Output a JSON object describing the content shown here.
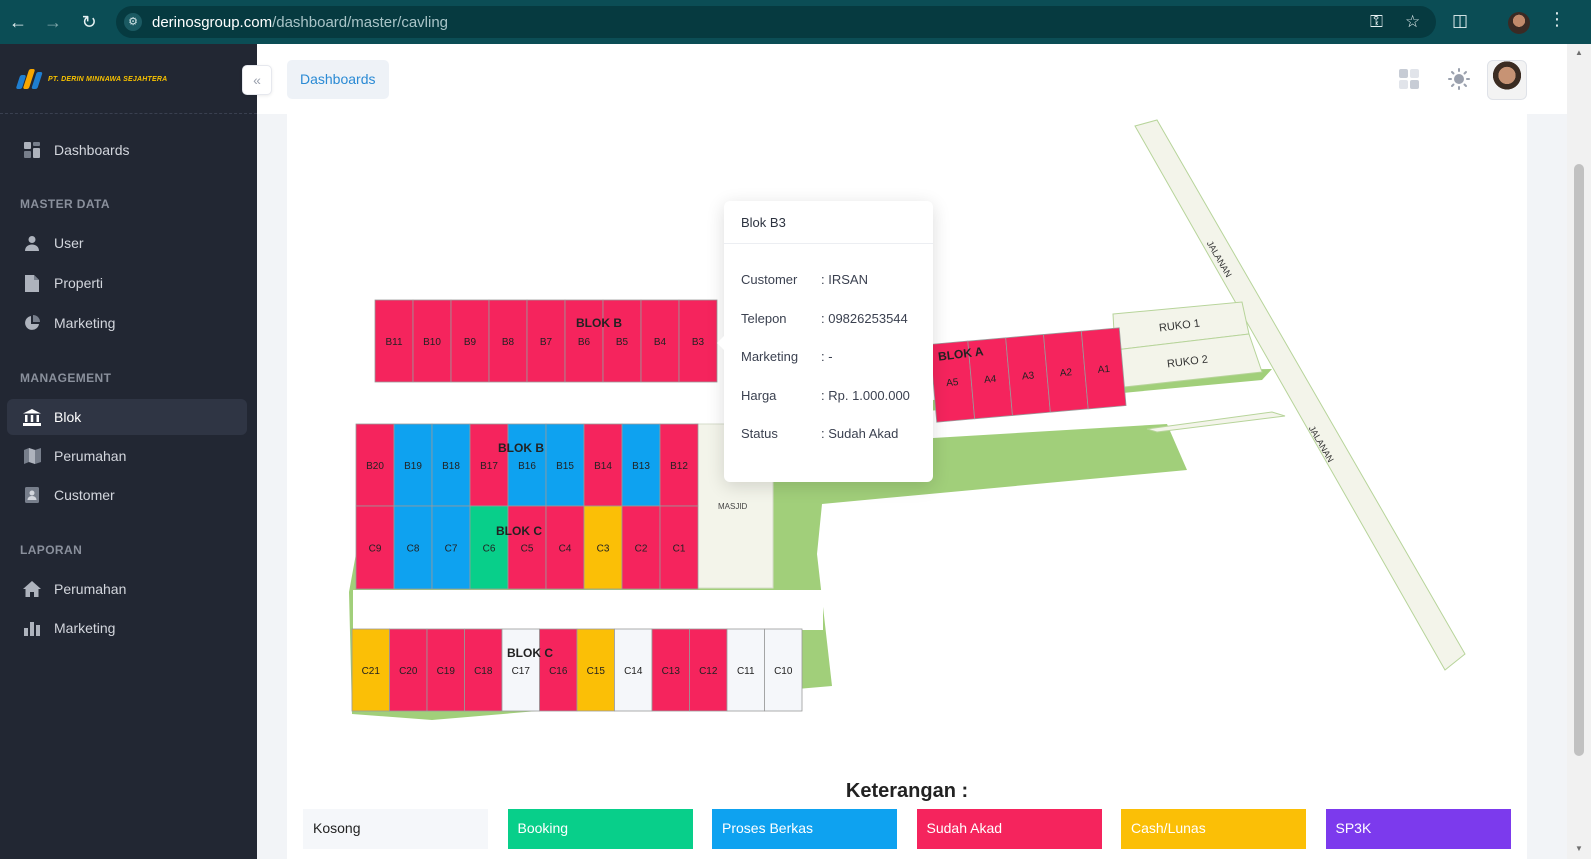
{
  "browser": {
    "url_host": "derinosgroup.com",
    "url_path": "/dashboard/master/cavling"
  },
  "sidebar": {
    "brand": "PT. DERIN MINNAWA SEJAHTERA",
    "items": [
      {
        "label": "Dashboards",
        "icon": "grid-icon"
      },
      {
        "label": "User",
        "icon": "user-icon"
      },
      {
        "label": "Properti",
        "icon": "file-icon"
      },
      {
        "label": "Marketing",
        "icon": "pie-chart-icon"
      },
      {
        "label": "Blok",
        "icon": "bank-icon",
        "active": true
      },
      {
        "label": "Perumahan",
        "icon": "map-icon"
      },
      {
        "label": "Customer",
        "icon": "contact-book-icon"
      },
      {
        "label": "Perumahan",
        "icon": "home-icon"
      },
      {
        "label": "Marketing",
        "icon": "bar-chart-icon"
      }
    ],
    "sections": [
      "MASTER DATA",
      "MANAGEMENT",
      "LAPORAN"
    ]
  },
  "header": {
    "breadcrumb": "Dashboards"
  },
  "map": {
    "labels": {
      "blok_b_top": "BLOK B",
      "blok_b_mid": "BLOK B",
      "blok_c_mid": "BLOK C",
      "blok_c_bottom": "BLOK C",
      "blok_a": "BLOK A",
      "masjid": "MASJID",
      "ruko1": "RUKO 1",
      "ruko2": "RUKO 2",
      "jalanan1": "JALANAN",
      "jalanan2": "JALANAN"
    },
    "colors": {
      "Kosong": "#f5f7fa",
      "Booking": "#08cf8a",
      "Proses Berkas": "#0ea2f0",
      "Sudah Akad": "#f5245d",
      "Cash/Lunas": "#fbbf06",
      "SP3K": "#7c3aed"
    },
    "row_b_top": [
      {
        "id": "B11",
        "status": "Sudah Akad"
      },
      {
        "id": "B10",
        "status": "Sudah Akad"
      },
      {
        "id": "B9",
        "status": "Sudah Akad"
      },
      {
        "id": "B8",
        "status": "Sudah Akad"
      },
      {
        "id": "B7",
        "status": "Sudah Akad"
      },
      {
        "id": "B6",
        "status": "Sudah Akad"
      },
      {
        "id": "B5",
        "status": "Sudah Akad"
      },
      {
        "id": "B4",
        "status": "Sudah Akad"
      },
      {
        "id": "B3",
        "status": "Sudah Akad"
      }
    ],
    "row_b_mid": [
      {
        "id": "B20",
        "status": "Sudah Akad"
      },
      {
        "id": "B19",
        "status": "Proses Berkas"
      },
      {
        "id": "B18",
        "status": "Proses Berkas"
      },
      {
        "id": "B17",
        "status": "Sudah Akad"
      },
      {
        "id": "B16",
        "status": "Proses Berkas"
      },
      {
        "id": "B15",
        "status": "Proses Berkas"
      },
      {
        "id": "B14",
        "status": "Sudah Akad"
      },
      {
        "id": "B13",
        "status": "Proses Berkas"
      },
      {
        "id": "B12",
        "status": "Sudah Akad"
      }
    ],
    "row_c_mid": [
      {
        "id": "C9",
        "status": "Sudah Akad"
      },
      {
        "id": "C8",
        "status": "Proses Berkas"
      },
      {
        "id": "C7",
        "status": "Proses Berkas"
      },
      {
        "id": "C6",
        "status": "Booking"
      },
      {
        "id": "C5",
        "status": "Sudah Akad"
      },
      {
        "id": "C4",
        "status": "Sudah Akad"
      },
      {
        "id": "C3",
        "status": "Cash/Lunas"
      },
      {
        "id": "C2",
        "status": "Sudah Akad"
      },
      {
        "id": "C1",
        "status": "Sudah Akad"
      }
    ],
    "row_c_bottom": [
      {
        "id": "C21",
        "status": "Cash/Lunas"
      },
      {
        "id": "C20",
        "status": "Sudah Akad"
      },
      {
        "id": "C19",
        "status": "Sudah Akad"
      },
      {
        "id": "C18",
        "status": "Sudah Akad"
      },
      {
        "id": "C17",
        "status": "Kosong"
      },
      {
        "id": "C16",
        "status": "Sudah Akad"
      },
      {
        "id": "C15",
        "status": "Cash/Lunas"
      },
      {
        "id": "C14",
        "status": "Kosong"
      },
      {
        "id": "C13",
        "status": "Sudah Akad"
      },
      {
        "id": "C12",
        "status": "Sudah Akad"
      },
      {
        "id": "C11",
        "status": "Kosong"
      },
      {
        "id": "C10",
        "status": "Kosong"
      }
    ],
    "row_a": [
      {
        "id": "A5",
        "status": "Sudah Akad"
      },
      {
        "id": "A4",
        "status": "Sudah Akad"
      },
      {
        "id": "A3",
        "status": "Sudah Akad"
      },
      {
        "id": "A2",
        "status": "Sudah Akad"
      },
      {
        "id": "A1",
        "status": "Sudah Akad"
      }
    ]
  },
  "tooltip": {
    "title": "Blok B3",
    "rows": [
      {
        "label": "Customer",
        "value": ": IRSAN"
      },
      {
        "label": "Telepon",
        "value": ": 09826253544"
      },
      {
        "label": "Marketing",
        "value": ": -"
      },
      {
        "label": "Harga",
        "value": ": Rp. 1.000.000"
      },
      {
        "label": "Status",
        "value": ": Sudah Akad"
      }
    ]
  },
  "legend": {
    "title": "Keterangan :",
    "items": [
      {
        "label": "Kosong",
        "color": "#f5f7fa",
        "text_color": "#222222"
      },
      {
        "label": "Booking",
        "color": "#08cf8a",
        "text_color": "#ffffff"
      },
      {
        "label": "Proses Berkas",
        "color": "#0ea2f0",
        "text_color": "#ffffff"
      },
      {
        "label": "Sudah Akad",
        "color": "#f5245d",
        "text_color": "#ffffff"
      },
      {
        "label": "Cash/Lunas",
        "color": "#fbbf06",
        "text_color": "#ffffff"
      },
      {
        "label": "SP3K",
        "color": "#7c3aed",
        "text_color": "#ffffff"
      }
    ]
  }
}
